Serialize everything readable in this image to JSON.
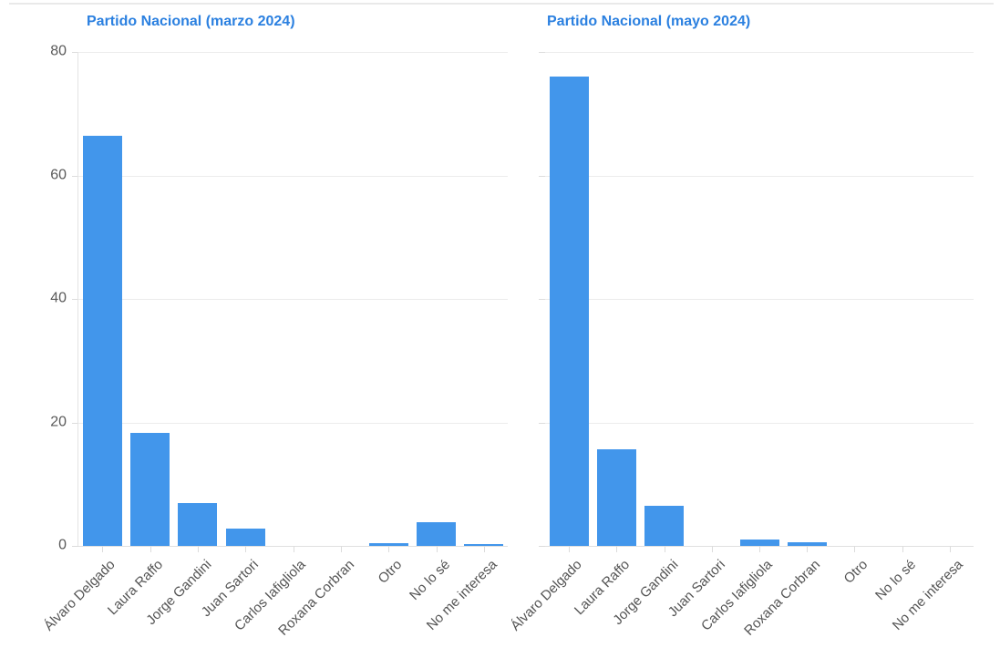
{
  "colors": {
    "bar": "#4296eb",
    "title": "#2b80e0",
    "grid": "#ececec",
    "axis": "#e0e0e0",
    "tick": "#dcdcdc",
    "tick_label": "#595959"
  },
  "chart_data": [
    {
      "type": "bar",
      "title": "Partido Nacional (marzo 2024)",
      "categories": [
        "Álvaro Delgado",
        "Laura Raffo",
        "Jorge Gandini",
        "Juan Sartori",
        "Carlos Iafigliola",
        "Roxana Corbran",
        "Otro",
        "No lo sé",
        "No me interesa"
      ],
      "values": [
        66.5,
        18.3,
        7,
        2.8,
        0,
        0,
        0.5,
        3.9,
        0.25
      ],
      "xlabel": "",
      "ylabel": "",
      "ylim": [
        0,
        80
      ],
      "yticks": [
        0,
        20,
        40,
        60,
        80
      ],
      "grid": true,
      "legend": "none",
      "y_axis_labels_visible": true
    },
    {
      "type": "bar",
      "title": "Partido Nacional (mayo 2024)",
      "categories": [
        "Álvaro Delgado",
        "Laura Raffo",
        "Jorge Gandini",
        "Juan Sartori",
        "Carlos Iafigliola",
        "Roxana Corbran",
        "Otro",
        "No lo sé",
        "No me interesa"
      ],
      "values": [
        76,
        15.6,
        6.5,
        0,
        1.1,
        0.55,
        0,
        0,
        0
      ],
      "xlabel": "",
      "ylabel": "",
      "ylim": [
        0,
        80
      ],
      "yticks": [
        0,
        20,
        40,
        60,
        80
      ],
      "grid": true,
      "legend": "none",
      "y_axis_labels_visible": false
    }
  ]
}
